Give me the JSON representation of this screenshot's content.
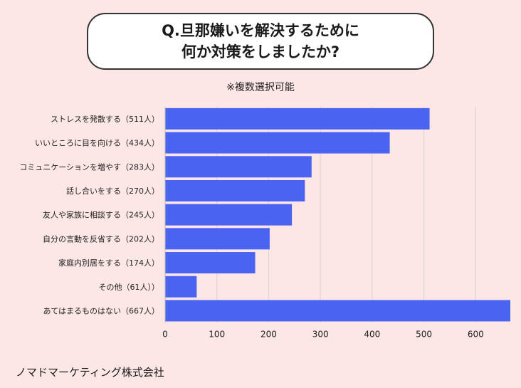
{
  "title_lines": [
    "Q.旦那嫌いを解決するために",
    "何か対策をしましたか?"
  ],
  "subtitle": "※複数選択可能",
  "company": "ノマドマーケティング株式会社",
  "colors": {
    "bar": "#4a63f0",
    "background": "#fde6e6",
    "grid": "#d9d2d2"
  },
  "chart_data": {
    "type": "bar",
    "orientation": "horizontal",
    "categories": [
      "ストレスを発散する（511人）",
      "いいところに目を向ける（434人）",
      "コミュニケーションを増やす（283人）",
      "話し合いをする（270人）",
      "友人や家族に相談する（245人）",
      "自分の言動を反省する（202人）",
      "家庭内別居をする（174人）",
      "その他（61人））",
      "あてはまるものはない（667人）"
    ],
    "values": [
      511,
      434,
      283,
      270,
      245,
      202,
      174,
      61,
      667
    ],
    "xlim": [
      0,
      667
    ],
    "xticks": [
      0,
      100,
      200,
      300,
      400,
      500,
      600
    ],
    "grid": true
  }
}
